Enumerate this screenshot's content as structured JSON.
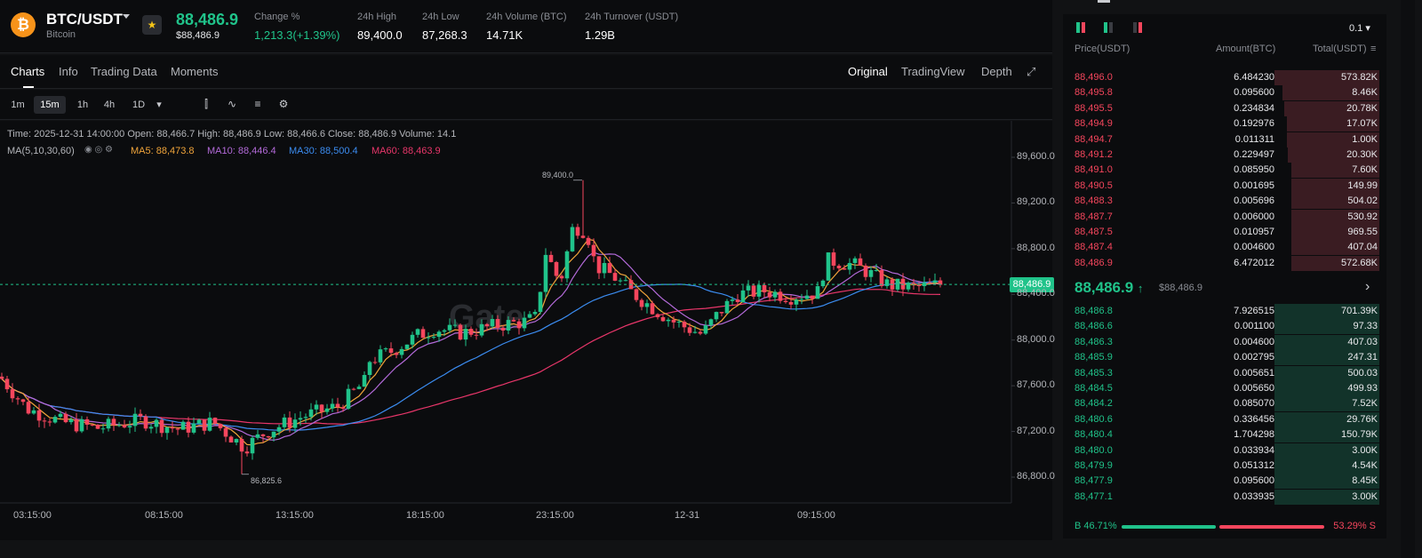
{
  "header": {
    "coin_glyph": "₿",
    "pair": "BTC/USDT",
    "coin_name": "Bitcoin",
    "price": "88,486.9",
    "price_sub": "$88,486.9",
    "stats": [
      {
        "label": "Change %",
        "value": "1,213.3(+1.39%)",
        "color": "#20c38a"
      },
      {
        "label": "24h High",
        "value": "89,400.0"
      },
      {
        "label": "24h Low",
        "value": "87,268.3"
      },
      {
        "label": "24h Volume (BTC)",
        "value": "14.71K"
      },
      {
        "label": "24h Turnover (USDT)",
        "value": "1.29B"
      }
    ]
  },
  "tabs": {
    "left": [
      "Charts",
      "Info",
      "Trading Data",
      "Moments"
    ],
    "right": [
      "Original",
      "TradingView",
      "Depth"
    ],
    "active_left": "Charts",
    "active_right": "Original"
  },
  "timeframes": [
    "1m",
    "15m",
    "1h",
    "4h",
    "1D"
  ],
  "active_timeframe": "15m",
  "info": {
    "ohlc": "Time: 2025-12-31 14:00:00     Open: 88,466.7     High: 88,486.9     Low: 88,466.6     Close: 88,486.9     Volume: 14.1",
    "ma_title": "MA(5,10,30,60)",
    "ma": [
      {
        "label": "MA5: 88,473.8",
        "color": "#f0a43a"
      },
      {
        "label": "MA10: 88,446.4",
        "color": "#b36ad9"
      },
      {
        "label": "MA30: 88,500.4",
        "color": "#3b8cf0"
      },
      {
        "label": "MA60: 88,463.9",
        "color": "#e8366a"
      }
    ]
  },
  "chart_data": {
    "type": "candlestick",
    "y_ticks": [
      "89,600.0",
      "89,200.0",
      "88,800.0",
      "88,400.0",
      "88,000.0",
      "87,600.0",
      "87,200.0",
      "86,800.0"
    ],
    "x_ticks": [
      "03:15:00",
      "08:15:00",
      "13:15:00",
      "18:15:00",
      "23:15:00",
      "12-31",
      "09:15:00"
    ],
    "ylim": [
      86700,
      89700
    ],
    "last_price": "88,486.9",
    "high_label": "89,400.0",
    "low_label": "86,825.6",
    "watermark": "Gate",
    "up_color": "#20c38a",
    "down_color": "#f6465d"
  },
  "orderbook": {
    "depth_step": "0.1",
    "headers": [
      "Price(USDT)",
      "Amount(BTC)",
      "Total(USDT)"
    ],
    "asks": [
      [
        "88,496.0",
        "6.484230",
        "573.82K",
        1.0
      ],
      [
        "88,495.8",
        "0.095600",
        "8.46K",
        0.92
      ],
      [
        "88,495.5",
        "0.234834",
        "20.78K",
        0.91
      ],
      [
        "88,494.9",
        "0.192976",
        "17.07K",
        0.88
      ],
      [
        "88,494.7",
        "0.011311",
        "1.00K",
        0.88
      ],
      [
        "88,491.2",
        "0.229497",
        "20.30K",
        0.87
      ],
      [
        "88,491.0",
        "0.085950",
        "7.60K",
        0.84
      ],
      [
        "88,490.5",
        "0.001695",
        "149.99",
        0.84
      ],
      [
        "88,488.3",
        "0.005696",
        "504.02",
        0.84
      ],
      [
        "88,487.7",
        "0.006000",
        "530.92",
        0.84
      ],
      [
        "88,487.5",
        "0.010957",
        "969.55",
        0.84
      ],
      [
        "88,487.4",
        "0.004600",
        "407.04",
        0.84
      ],
      [
        "88,486.9",
        "6.472012",
        "572.68K",
        0.84
      ]
    ],
    "mid_price": "88,486.9",
    "mid_arrow": "↑",
    "mid_sub": "$88,486.9",
    "bids": [
      [
        "88,486.8",
        "7.926515",
        "701.39K",
        1.0
      ],
      [
        "88,486.6",
        "0.001100",
        "97.33",
        1.0
      ],
      [
        "88,486.3",
        "0.004600",
        "407.03",
        1.0
      ],
      [
        "88,485.9",
        "0.002795",
        "247.31",
        1.0
      ],
      [
        "88,485.3",
        "0.005651",
        "500.03",
        1.0
      ],
      [
        "88,484.5",
        "0.005650",
        "499.93",
        1.0
      ],
      [
        "88,484.2",
        "0.085070",
        "7.52K",
        1.0
      ],
      [
        "88,480.6",
        "0.336456",
        "29.76K",
        1.0
      ],
      [
        "88,480.4",
        "1.704298",
        "150.79K",
        1.0
      ],
      [
        "88,480.0",
        "0.033934",
        "3.00K",
        1.0
      ],
      [
        "88,479.9",
        "0.051312",
        "4.54K",
        1.0
      ],
      [
        "88,477.9",
        "0.095600",
        "8.45K",
        1.0
      ],
      [
        "88,477.1",
        "0.033935",
        "3.00K",
        1.0
      ]
    ],
    "buy_ratio": "B 46.71%",
    "sell_ratio": "53.29% S",
    "buy_fraction": 0.4671
  }
}
